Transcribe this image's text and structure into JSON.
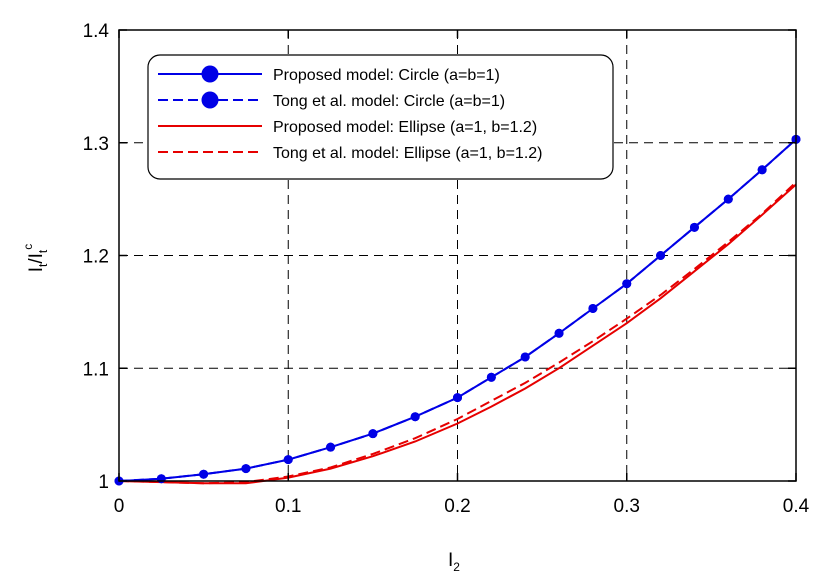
{
  "chart_data": {
    "type": "line",
    "xlabel": "I",
    "xlabel_sub": "2",
    "ylabel": "I",
    "ylabel_sub": "t",
    "ylabel_mid": "/I",
    "ylabel_sub2": "t",
    "ylabel_sup": "c",
    "xlim": [
      0,
      0.4
    ],
    "ylim": [
      1,
      1.4
    ],
    "x_ticks": [
      0,
      0.1,
      0.2,
      0.3,
      0.4
    ],
    "x_tick_labels": [
      "0",
      "0.1",
      "0.2",
      "0.3",
      "0.4"
    ],
    "y_ticks": [
      1,
      1.1,
      1.2,
      1.3,
      1.4
    ],
    "y_tick_labels": [
      "1",
      "1.1",
      "1.2",
      "1.3",
      "1.4"
    ],
    "grid": true,
    "legend_position": "top-left",
    "x": [
      0,
      0.025,
      0.05,
      0.075,
      0.1,
      0.125,
      0.15,
      0.175,
      0.2,
      0.22,
      0.24,
      0.26,
      0.28,
      0.3,
      0.32,
      0.34,
      0.36,
      0.38,
      0.4
    ],
    "series": [
      {
        "name": "Proposed model: Circle (a=b=1)",
        "color": "#0000e6",
        "style": "solid",
        "markers": true,
        "y": [
          1.0,
          1.002,
          1.006,
          1.011,
          1.019,
          1.03,
          1.042,
          1.057,
          1.074,
          1.092,
          1.11,
          1.131,
          1.153,
          1.175,
          1.2,
          1.225,
          1.25,
          1.276,
          1.303
        ]
      },
      {
        "name": "Tong et al. model: Circle (a=b=1)",
        "color": "#0000e6",
        "style": "dashed",
        "markers": true,
        "y": [
          1.0,
          1.002,
          1.006,
          1.011,
          1.019,
          1.03,
          1.042,
          1.057,
          1.074,
          1.092,
          1.11,
          1.131,
          1.153,
          1.175,
          1.2,
          1.225,
          1.25,
          1.276,
          1.303
        ]
      },
      {
        "name": "Proposed model: Ellipse (a=1, b=1.2)",
        "color": "#e60000",
        "style": "solid",
        "markers": false,
        "y": [
          1.0,
          0.999,
          0.998,
          0.998,
          1.003,
          1.011,
          1.022,
          1.035,
          1.051,
          1.066,
          1.082,
          1.1,
          1.12,
          1.14,
          1.162,
          1.186,
          1.21,
          1.236,
          1.263
        ]
      },
      {
        "name": "Tong et al. model: Ellipse (a=1, b=1.2)",
        "color": "#e60000",
        "style": "dashed",
        "markers": false,
        "y": [
          1.0,
          0.999,
          0.998,
          0.999,
          1.004,
          1.012,
          1.024,
          1.038,
          1.055,
          1.071,
          1.087,
          1.105,
          1.124,
          1.144,
          1.165,
          1.188,
          1.212,
          1.237,
          1.265
        ]
      }
    ]
  }
}
